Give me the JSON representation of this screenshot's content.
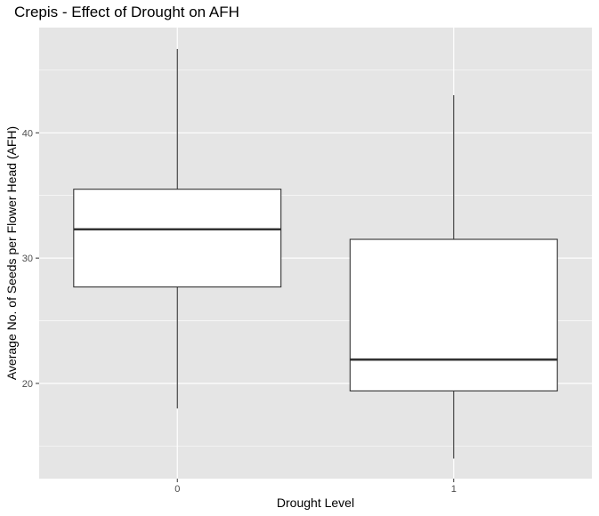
{
  "chart_data": {
    "type": "boxplot",
    "title": "Crepis - Effect of Drought on AFH",
    "xlabel": "Drought Level",
    "ylabel": "Average No. of Seeds per Flower Head (AFH)",
    "categories": [
      "0",
      "1"
    ],
    "boxes": [
      {
        "category": "0",
        "whisker_low": 18.0,
        "q1": 27.7,
        "median": 32.3,
        "q3": 35.5,
        "whisker_high": 46.7
      },
      {
        "category": "1",
        "whisker_low": 14.0,
        "q1": 19.4,
        "median": 21.9,
        "q3": 31.5,
        "whisker_high": 43.0
      }
    ],
    "y_ticks": [
      20,
      30,
      40
    ],
    "ylim": [
      12.4,
      48.4
    ],
    "grid": true,
    "colors": {
      "panel": "#e5e5e5",
      "grid": "#ffffff",
      "box_fill": "#ffffff",
      "box_stroke": "#333333"
    }
  }
}
